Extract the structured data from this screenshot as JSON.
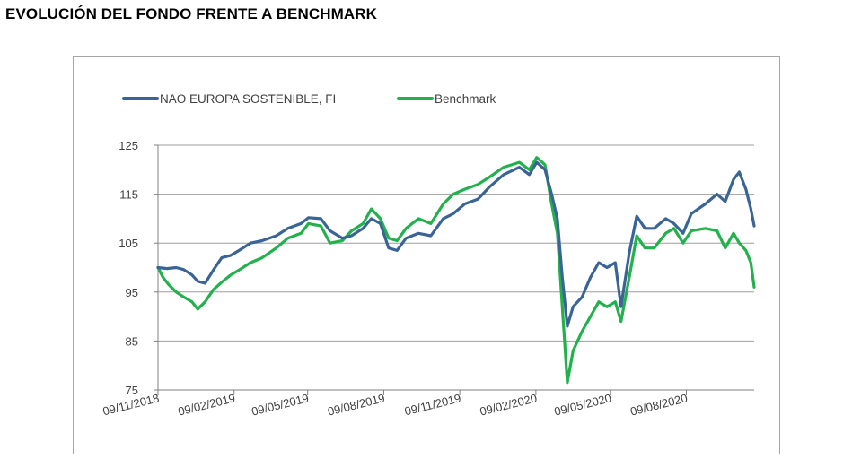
{
  "header": {
    "title": "EVOLUCIÓN DEL FONDO FRENTE A BENCHMARK"
  },
  "colors": {
    "fund": "#3a6495",
    "benchmark": "#22b14c",
    "grid": "#9e9e9e",
    "axis": "#808080"
  },
  "chart_data": {
    "type": "line",
    "title": "",
    "xlabel": "",
    "ylabel": "",
    "ylim": [
      75,
      125
    ],
    "yticks": [
      75,
      85,
      95,
      105,
      115,
      125
    ],
    "xticks": [
      "09/11/2018",
      "09/02/2019",
      "09/05/2019",
      "09/08/2019",
      "09/11/2019",
      "09/02/2020",
      "09/05/2020",
      "09/08/2020"
    ],
    "xlim": [
      "2018-11-09",
      "2020-10-30"
    ],
    "grid": true,
    "legend_position": "top-left",
    "series": [
      {
        "name": "NAO EUROPA SOSTENIBLE, FI",
        "points": [
          [
            "2018-11-09",
            100
          ],
          [
            "2018-11-20",
            99.8
          ],
          [
            "2018-12-01",
            100
          ],
          [
            "2018-12-10",
            99.6
          ],
          [
            "2018-12-20",
            98.5
          ],
          [
            "2018-12-27",
            97.2
          ],
          [
            "2019-01-05",
            96.8
          ],
          [
            "2019-01-15",
            99.5
          ],
          [
            "2019-01-25",
            102
          ],
          [
            "2019-02-05",
            102.5
          ],
          [
            "2019-02-15",
            103.5
          ],
          [
            "2019-03-01",
            105
          ],
          [
            "2019-03-15",
            105.5
          ],
          [
            "2019-04-01",
            106.5
          ],
          [
            "2019-04-15",
            108
          ],
          [
            "2019-05-01",
            109
          ],
          [
            "2019-05-10",
            110.2
          ],
          [
            "2019-05-25",
            110
          ],
          [
            "2019-06-05",
            107.5
          ],
          [
            "2019-06-20",
            106
          ],
          [
            "2019-07-01",
            106.5
          ],
          [
            "2019-07-15",
            108
          ],
          [
            "2019-07-25",
            110
          ],
          [
            "2019-08-05",
            109
          ],
          [
            "2019-08-15",
            104
          ],
          [
            "2019-08-25",
            103.5
          ],
          [
            "2019-09-05",
            106
          ],
          [
            "2019-09-20",
            107
          ],
          [
            "2019-10-05",
            106.5
          ],
          [
            "2019-10-20",
            110
          ],
          [
            "2019-11-01",
            111
          ],
          [
            "2019-11-15",
            113
          ],
          [
            "2019-12-01",
            114
          ],
          [
            "2019-12-15",
            116.5
          ],
          [
            "2020-01-01",
            119
          ],
          [
            "2020-01-20",
            120.5
          ],
          [
            "2020-02-01",
            119
          ],
          [
            "2020-02-10",
            121.5
          ],
          [
            "2020-02-20",
            120
          ],
          [
            "2020-02-28",
            115
          ],
          [
            "2020-03-06",
            110
          ],
          [
            "2020-03-12",
            98
          ],
          [
            "2020-03-18",
            88
          ],
          [
            "2020-03-25",
            92
          ],
          [
            "2020-04-05",
            94
          ],
          [
            "2020-04-15",
            98
          ],
          [
            "2020-04-25",
            101
          ],
          [
            "2020-05-05",
            100
          ],
          [
            "2020-05-15",
            101
          ],
          [
            "2020-05-22",
            92
          ],
          [
            "2020-06-01",
            103
          ],
          [
            "2020-06-10",
            110.5
          ],
          [
            "2020-06-20",
            108
          ],
          [
            "2020-07-01",
            108
          ],
          [
            "2020-07-15",
            110
          ],
          [
            "2020-07-25",
            109
          ],
          [
            "2020-08-05",
            107
          ],
          [
            "2020-08-15",
            111
          ],
          [
            "2020-09-01",
            113
          ],
          [
            "2020-09-15",
            115
          ],
          [
            "2020-09-25",
            113.5
          ],
          [
            "2020-10-05",
            118
          ],
          [
            "2020-10-12",
            119.5
          ],
          [
            "2020-10-20",
            116
          ],
          [
            "2020-10-26",
            112
          ],
          [
            "2020-10-30",
            108.5
          ]
        ]
      },
      {
        "name": "Benchmark",
        "points": [
          [
            "2018-11-09",
            100
          ],
          [
            "2018-11-15",
            98
          ],
          [
            "2018-11-22",
            96.5
          ],
          [
            "2018-12-01",
            95
          ],
          [
            "2018-12-10",
            94
          ],
          [
            "2018-12-20",
            93
          ],
          [
            "2018-12-27",
            91.5
          ],
          [
            "2019-01-05",
            93
          ],
          [
            "2019-01-15",
            95.5
          ],
          [
            "2019-01-25",
            97
          ],
          [
            "2019-02-05",
            98.5
          ],
          [
            "2019-02-15",
            99.5
          ],
          [
            "2019-03-01",
            101
          ],
          [
            "2019-03-15",
            102
          ],
          [
            "2019-04-01",
            104
          ],
          [
            "2019-04-15",
            106
          ],
          [
            "2019-05-01",
            107
          ],
          [
            "2019-05-10",
            109
          ],
          [
            "2019-05-25",
            108.5
          ],
          [
            "2019-06-05",
            105
          ],
          [
            "2019-06-20",
            105.5
          ],
          [
            "2019-07-01",
            107.5
          ],
          [
            "2019-07-15",
            109
          ],
          [
            "2019-07-25",
            112
          ],
          [
            "2019-08-05",
            110
          ],
          [
            "2019-08-15",
            106
          ],
          [
            "2019-08-25",
            105.5
          ],
          [
            "2019-09-05",
            108
          ],
          [
            "2019-09-20",
            110
          ],
          [
            "2019-10-05",
            109
          ],
          [
            "2019-10-20",
            113
          ],
          [
            "2019-11-01",
            115
          ],
          [
            "2019-11-15",
            116
          ],
          [
            "2019-12-01",
            117
          ],
          [
            "2019-12-15",
            118.5
          ],
          [
            "2020-01-01",
            120.5
          ],
          [
            "2020-01-20",
            121.5
          ],
          [
            "2020-02-01",
            120
          ],
          [
            "2020-02-10",
            122.5
          ],
          [
            "2020-02-20",
            121
          ],
          [
            "2020-02-28",
            113
          ],
          [
            "2020-03-06",
            107
          ],
          [
            "2020-03-12",
            92
          ],
          [
            "2020-03-18",
            76.5
          ],
          [
            "2020-03-25",
            83
          ],
          [
            "2020-04-05",
            87
          ],
          [
            "2020-04-15",
            90
          ],
          [
            "2020-04-25",
            93
          ],
          [
            "2020-05-05",
            92
          ],
          [
            "2020-05-15",
            93
          ],
          [
            "2020-05-22",
            89
          ],
          [
            "2020-06-01",
            98
          ],
          [
            "2020-06-10",
            106.5
          ],
          [
            "2020-06-20",
            104
          ],
          [
            "2020-07-01",
            104
          ],
          [
            "2020-07-15",
            107
          ],
          [
            "2020-07-25",
            108
          ],
          [
            "2020-08-05",
            105
          ],
          [
            "2020-08-15",
            107.5
          ],
          [
            "2020-09-01",
            108
          ],
          [
            "2020-09-15",
            107.5
          ],
          [
            "2020-09-25",
            104
          ],
          [
            "2020-10-05",
            107
          ],
          [
            "2020-10-12",
            105
          ],
          [
            "2020-10-20",
            103.5
          ],
          [
            "2020-10-26",
            101
          ],
          [
            "2020-10-30",
            96
          ]
        ]
      }
    ]
  }
}
